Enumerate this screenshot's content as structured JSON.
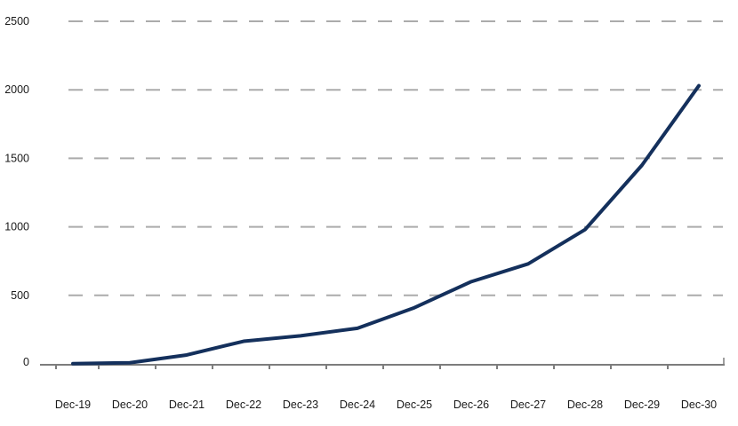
{
  "chart_data": {
    "type": "line",
    "title": "",
    "xlabel": "",
    "ylabel": "",
    "categories": [
      "Dec-19",
      "Dec-20",
      "Dec-21",
      "Dec-22",
      "Dec-23",
      "Dec-24",
      "Dec-25",
      "Dec-26",
      "Dec-27",
      "Dec-28",
      "Dec-29",
      "Dec-30"
    ],
    "series": [
      {
        "name": "series-1",
        "values": [
          2,
          8,
          65,
          165,
          205,
          260,
          410,
          600,
          730,
          980,
          1450,
          2030
        ]
      }
    ],
    "ylim": [
      0,
      2500
    ],
    "yticks": [
      0,
      500,
      1000,
      1500,
      2000,
      2500
    ],
    "grid": "horizontal-dashed",
    "legend": "none",
    "colors": {
      "line": "#14305c",
      "gridline": "#ababab",
      "axis": "#7d7d7d",
      "tick": "#7d7d7d",
      "text": "#1a1a1a"
    }
  }
}
